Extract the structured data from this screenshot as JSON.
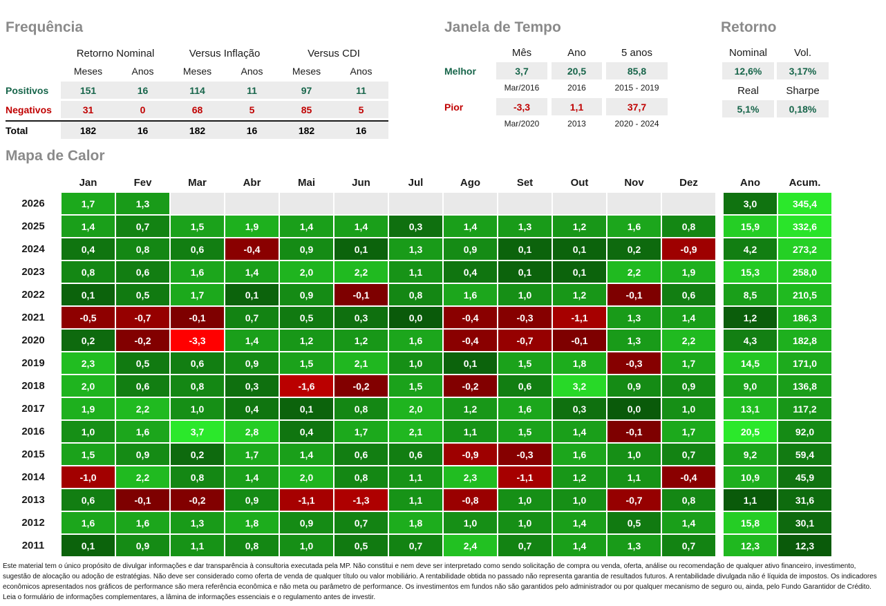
{
  "colors": {
    "title_gray": "#8A8A8A",
    "positive_text": "#17654A",
    "negative_text": "#C00000",
    "cell_bg": "#ECECEC",
    "heatmap_empty": "#E9E9E9",
    "green_dark": "#0A5A0A",
    "green_bright": "#2BE82B",
    "red_dark": "#7A0000",
    "red_bright": "#FF0000",
    "text_black": "#1A1A1A"
  },
  "frequencia": {
    "title": "Frequência",
    "group_headers": [
      "Retorno Nominal",
      "Versus Inflação",
      "Versus CDI"
    ],
    "column_headers": [
      "Meses",
      "Anos",
      "Meses",
      "Anos",
      "Meses",
      "Anos"
    ],
    "rows": [
      {
        "label": "Positivos",
        "color": "#17654A",
        "values": [
          151,
          16,
          114,
          11,
          97,
          11
        ]
      },
      {
        "label": "Negativos",
        "color": "#C00000",
        "values": [
          31,
          0,
          68,
          5,
          85,
          5
        ]
      },
      {
        "label": "Total",
        "color": "#000000",
        "values": [
          182,
          16,
          182,
          16,
          182,
          16
        ]
      }
    ]
  },
  "janela": {
    "title": "Janela de Tempo",
    "headers": [
      "Mês",
      "Ano",
      "5 anos"
    ],
    "melhor": {
      "label": "Melhor",
      "values": [
        "3,7",
        "20,5",
        "85,8"
      ],
      "periods": [
        "Mar/2016",
        "2016",
        "2015 - 2019"
      ]
    },
    "pior": {
      "label": "Pior",
      "values": [
        "-3,3",
        "1,1",
        "37,7"
      ],
      "periods": [
        "Mar/2020",
        "2013",
        "2020 - 2024"
      ]
    }
  },
  "retorno": {
    "title": "Retorno",
    "nominal_label": "Nominal",
    "vol_label": "Vol.",
    "nominal_value": "12,6%",
    "vol_value": "3,17%",
    "real_label": "Real",
    "sharpe_label": "Sharpe",
    "real_value": "5,1%",
    "sharpe_value": "0,18%"
  },
  "chart_data": {
    "type": "heatmap",
    "title": "Mapa de Calor",
    "x_labels": [
      "Jan",
      "Fev",
      "Mar",
      "Abr",
      "Mai",
      "Jun",
      "Jul",
      "Ago",
      "Set",
      "Out",
      "Nov",
      "Dez"
    ],
    "extra_columns": [
      "Ano",
      "Acum."
    ],
    "value_range": [
      -3.3,
      3.7
    ],
    "rows": [
      {
        "year": "2026",
        "monthly": [
          1.7,
          1.3,
          null,
          null,
          null,
          null,
          null,
          null,
          null,
          null,
          null,
          null
        ],
        "ano": 3.0,
        "acum": 345.4
      },
      {
        "year": "2025",
        "monthly": [
          1.4,
          0.7,
          1.5,
          1.9,
          1.4,
          1.4,
          0.3,
          1.4,
          1.3,
          1.2,
          1.6,
          0.8
        ],
        "ano": 15.9,
        "acum": 332.6
      },
      {
        "year": "2024",
        "monthly": [
          0.4,
          0.8,
          0.6,
          -0.4,
          0.9,
          0.1,
          1.3,
          0.9,
          0.1,
          0.1,
          0.2,
          -0.9
        ],
        "ano": 4.2,
        "acum": 273.2
      },
      {
        "year": "2023",
        "monthly": [
          0.8,
          0.6,
          1.6,
          1.4,
          2.0,
          2.2,
          1.1,
          0.4,
          0.1,
          0.1,
          2.2,
          1.9
        ],
        "ano": 15.3,
        "acum": 258.0
      },
      {
        "year": "2022",
        "monthly": [
          0.1,
          0.5,
          1.7,
          0.1,
          0.9,
          -0.1,
          0.8,
          1.6,
          1.0,
          1.2,
          -0.1,
          0.6
        ],
        "ano": 8.5,
        "acum": 210.5
      },
      {
        "year": "2021",
        "monthly": [
          -0.5,
          -0.7,
          -0.1,
          0.7,
          0.5,
          0.3,
          0.0,
          -0.4,
          -0.3,
          -1.1,
          1.3,
          1.4
        ],
        "ano": 1.2,
        "acum": 186.3
      },
      {
        "year": "2020",
        "monthly": [
          0.2,
          -0.2,
          -3.3,
          1.4,
          1.2,
          1.2,
          1.6,
          -0.4,
          -0.7,
          -0.1,
          1.3,
          2.2
        ],
        "ano": 4.3,
        "acum": 182.8
      },
      {
        "year": "2019",
        "monthly": [
          2.3,
          0.5,
          0.6,
          0.9,
          1.5,
          2.1,
          1.0,
          0.1,
          1.5,
          1.8,
          -0.3,
          1.7
        ],
        "ano": 14.5,
        "acum": 171.0
      },
      {
        "year": "2018",
        "monthly": [
          2.0,
          0.6,
          0.8,
          0.3,
          -1.6,
          -0.2,
          1.5,
          -0.2,
          0.6,
          3.2,
          0.9,
          0.9
        ],
        "ano": 9.0,
        "acum": 136.8
      },
      {
        "year": "2017",
        "monthly": [
          1.9,
          2.2,
          1.0,
          0.4,
          0.1,
          0.8,
          2.0,
          1.2,
          1.6,
          0.3,
          0.0,
          1.0
        ],
        "ano": 13.1,
        "acum": 117.2
      },
      {
        "year": "2016",
        "monthly": [
          1.0,
          1.6,
          3.7,
          2.8,
          0.4,
          1.7,
          2.1,
          1.1,
          1.5,
          1.4,
          -0.1,
          1.7
        ],
        "ano": 20.5,
        "acum": 92.0
      },
      {
        "year": "2015",
        "monthly": [
          1.5,
          0.9,
          0.2,
          1.7,
          1.4,
          0.6,
          0.6,
          -0.9,
          -0.3,
          1.6,
          1.0,
          0.7
        ],
        "ano": 9.2,
        "acum": 59.4
      },
      {
        "year": "2014",
        "monthly": [
          -1.0,
          2.2,
          0.8,
          1.4,
          2.0,
          0.8,
          1.1,
          2.3,
          -1.1,
          1.2,
          1.1,
          -0.4
        ],
        "ano": 10.9,
        "acum": 45.9
      },
      {
        "year": "2013",
        "monthly": [
          0.6,
          -0.1,
          -0.2,
          0.9,
          -1.1,
          -1.3,
          1.1,
          -0.8,
          1.0,
          1.0,
          -0.7,
          0.8
        ],
        "ano": 1.1,
        "acum": 31.6
      },
      {
        "year": "2012",
        "monthly": [
          1.6,
          1.6,
          1.3,
          1.8,
          0.9,
          0.7,
          1.8,
          1.0,
          1.0,
          1.4,
          0.5,
          1.4
        ],
        "ano": 15.8,
        "acum": 30.1
      },
      {
        "year": "2011",
        "monthly": [
          0.1,
          0.9,
          1.1,
          0.8,
          1.0,
          0.5,
          0.7,
          2.4,
          0.7,
          1.4,
          1.3,
          0.7
        ],
        "ano": 12.3,
        "acum": 12.3
      }
    ]
  },
  "disclaimer": "Este material tem o único propósito de divulgar informações e dar transparência à consultoria executada pela MP. Não constitui e nem deve ser interpretado como sendo solicitação de compra ou venda, oferta, análise ou recomendação de qualquer ativo financeiro, investimento, sugestão de alocação ou adoção de estratégias. Não deve ser considerado como oferta de venda de qualquer título ou valor mobiliário. A rentabilidade obtida no passado não representa garantia de resultados futuros. A rentabilidade divulgada não é líquida de impostos. Os indicadores econômicos apresentados nos gráficos de performance são mera referência econômica e não meta ou parâmetro de performance. Os investimentos em fundos não são garantidos pelo administrador ou por qualquer mecanismo de seguro ou, ainda, pelo Fundo Garantidor de Crédito. Leia o formulário de informações complementares, a lâmina de informações essenciais e o regulamento antes de investir."
}
